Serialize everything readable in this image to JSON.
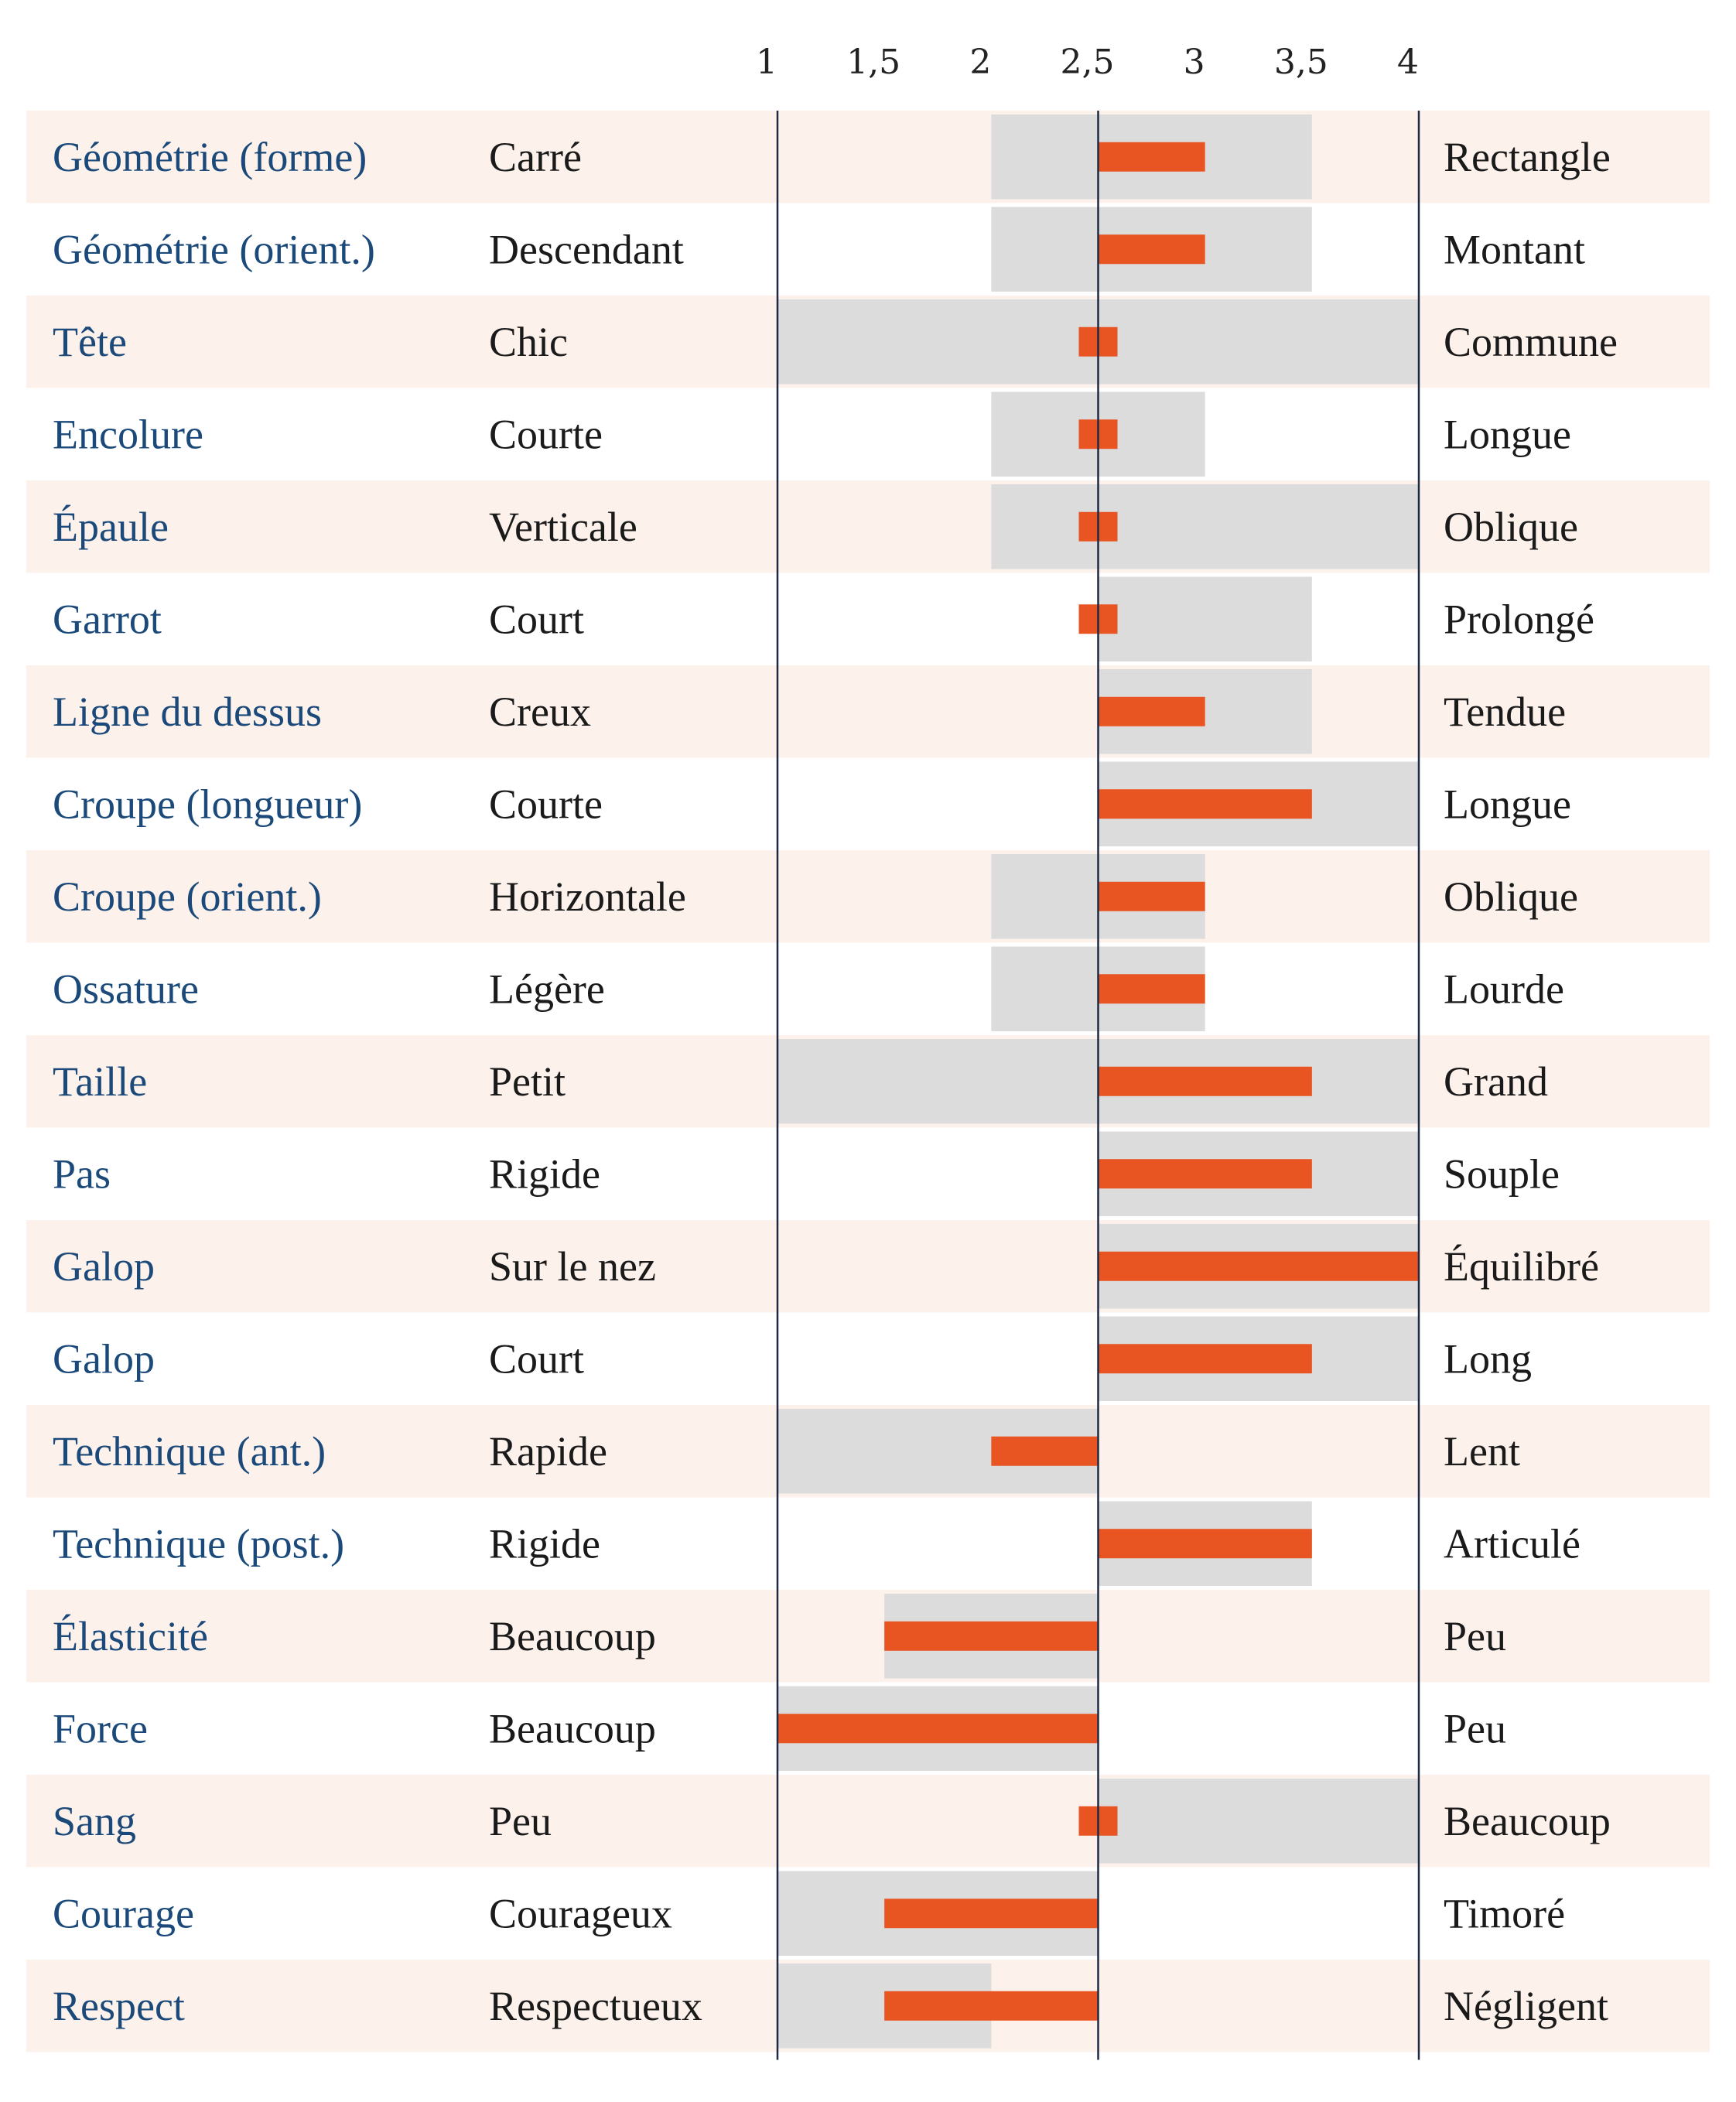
{
  "colors": {
    "row_alt": "#fdf1ec",
    "range_fill": "#dcdcdc",
    "mean_bar": "#e85422",
    "axis_line": "#1e2a45",
    "trait_text": "#1b4a7a",
    "pole_text": "#1a1a1a"
  },
  "chart_data": {
    "type": "bar",
    "xlim": [
      1,
      4
    ],
    "xticks": [
      1,
      1.5,
      2,
      2.5,
      3,
      3.5,
      4
    ],
    "xtick_labels": [
      "1",
      "1,5",
      "2",
      "2,5",
      "3",
      "3,5",
      "4"
    ],
    "center": 2.5,
    "rows": [
      {
        "trait": "Géométrie (forme)",
        "low": "Carré",
        "high": "Rectangle",
        "range": [
          2,
          3.5
        ],
        "value": 3
      },
      {
        "trait": "Géométrie (orient.)",
        "low": "Descendant",
        "high": "Montant",
        "range": [
          2,
          3.5
        ],
        "value": 3
      },
      {
        "trait": "Tête",
        "low": "Chic",
        "high": "Commune",
        "range": [
          1,
          4
        ],
        "value": 2.5
      },
      {
        "trait": "Encolure",
        "low": "Courte",
        "high": "Longue",
        "range": [
          2,
          3
        ],
        "value": 2.5
      },
      {
        "trait": "Épaule",
        "low": "Verticale",
        "high": "Oblique",
        "range": [
          2,
          4
        ],
        "value": 2.5
      },
      {
        "trait": "Garrot",
        "low": "Court",
        "high": "Prolongé",
        "range": [
          2.5,
          3.5
        ],
        "value": 2.5
      },
      {
        "trait": "Ligne du dessus",
        "low": "Creux",
        "high": "Tendue",
        "range": [
          2.5,
          3.5
        ],
        "value": 3
      },
      {
        "trait": "Croupe (longueur)",
        "low": "Courte",
        "high": "Longue",
        "range": [
          2.5,
          4
        ],
        "value": 3.5
      },
      {
        "trait": "Croupe (orient.)",
        "low": "Horizontale",
        "high": "Oblique",
        "range": [
          2,
          3
        ],
        "value": 3
      },
      {
        "trait": "Ossature",
        "low": "Légère",
        "high": "Lourde",
        "range": [
          2,
          3
        ],
        "value": 3
      },
      {
        "trait": "Taille",
        "low": "Petit",
        "high": "Grand",
        "range": [
          1,
          4
        ],
        "value": 3.5
      },
      {
        "trait": "Pas",
        "low": "Rigide",
        "high": "Souple",
        "range": [
          2.5,
          4
        ],
        "value": 3.5
      },
      {
        "trait": "Galop",
        "low": "Sur le nez",
        "high": "Équilibré",
        "range": [
          2.5,
          4
        ],
        "value": 4
      },
      {
        "trait": "Galop",
        "low": "Court",
        "high": "Long",
        "range": [
          2.5,
          4
        ],
        "value": 3.5
      },
      {
        "trait": "Technique (ant.)",
        "low": "Rapide",
        "high": "Lent",
        "range": [
          1,
          2.5
        ],
        "value": 2
      },
      {
        "trait": "Technique (post.)",
        "low": "Rigide",
        "high": "Articulé",
        "range": [
          2.5,
          3.5
        ],
        "value": 3.5
      },
      {
        "trait": "Élasticité",
        "low": "Beaucoup",
        "high": "Peu",
        "range": [
          1.5,
          2.5
        ],
        "value": 1.5
      },
      {
        "trait": "Force",
        "low": "Beaucoup",
        "high": "Peu",
        "range": [
          1,
          2.5
        ],
        "value": 1
      },
      {
        "trait": "Sang",
        "low": "Peu",
        "high": "Beaucoup",
        "range": [
          2.5,
          4
        ],
        "value": 2.5
      },
      {
        "trait": "Courage",
        "low": "Courageux",
        "high": "Timoré",
        "range": [
          1,
          2.5
        ],
        "value": 1.5
      },
      {
        "trait": "Respect",
        "low": "Respectueux",
        "high": "Négligent",
        "range": [
          1,
          2
        ],
        "value": 1.5
      }
    ]
  }
}
